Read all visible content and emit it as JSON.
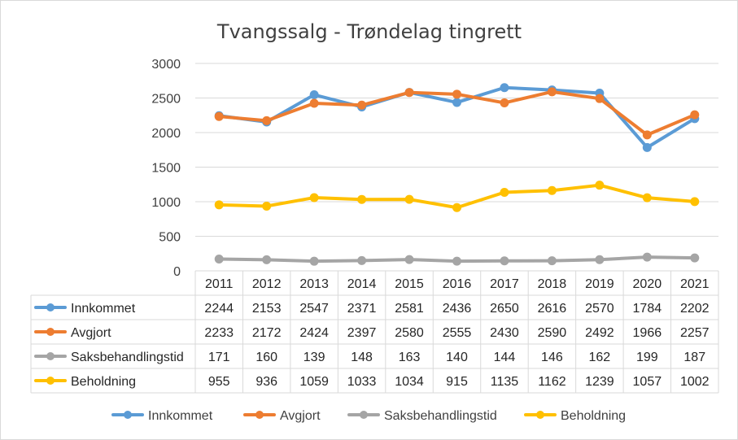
{
  "chart_data": {
    "type": "line",
    "title": "Tvangssalg - Trøndelag tingrett",
    "categories": [
      "2011",
      "2012",
      "2013",
      "2014",
      "2015",
      "2016",
      "2017",
      "2018",
      "2019",
      "2020",
      "2021"
    ],
    "ylim": [
      0,
      3000
    ],
    "yticks": [
      "0",
      "500",
      "1000",
      "1500",
      "2000",
      "2500",
      "3000"
    ],
    "grid": true,
    "legend_position": "bottom",
    "data_table": true,
    "series": [
      {
        "name": "Innkommet",
        "color": "#5b9bd5",
        "values": [
          2244,
          2153,
          2547,
          2371,
          2581,
          2436,
          2650,
          2616,
          2570,
          1784,
          2202
        ]
      },
      {
        "name": "Avgjort",
        "color": "#ed7d31",
        "values": [
          2233,
          2172,
          2424,
          2397,
          2580,
          2555,
          2430,
          2590,
          2492,
          1966,
          2257
        ]
      },
      {
        "name": "Saksbehandlingstid",
        "color": "#a5a5a5",
        "values": [
          171,
          160,
          139,
          148,
          163,
          140,
          144,
          146,
          162,
          199,
          187
        ]
      },
      {
        "name": "Beholdning",
        "color": "#ffc000",
        "values": [
          955,
          936,
          1059,
          1033,
          1034,
          915,
          1135,
          1162,
          1239,
          1057,
          1002
        ]
      }
    ]
  }
}
